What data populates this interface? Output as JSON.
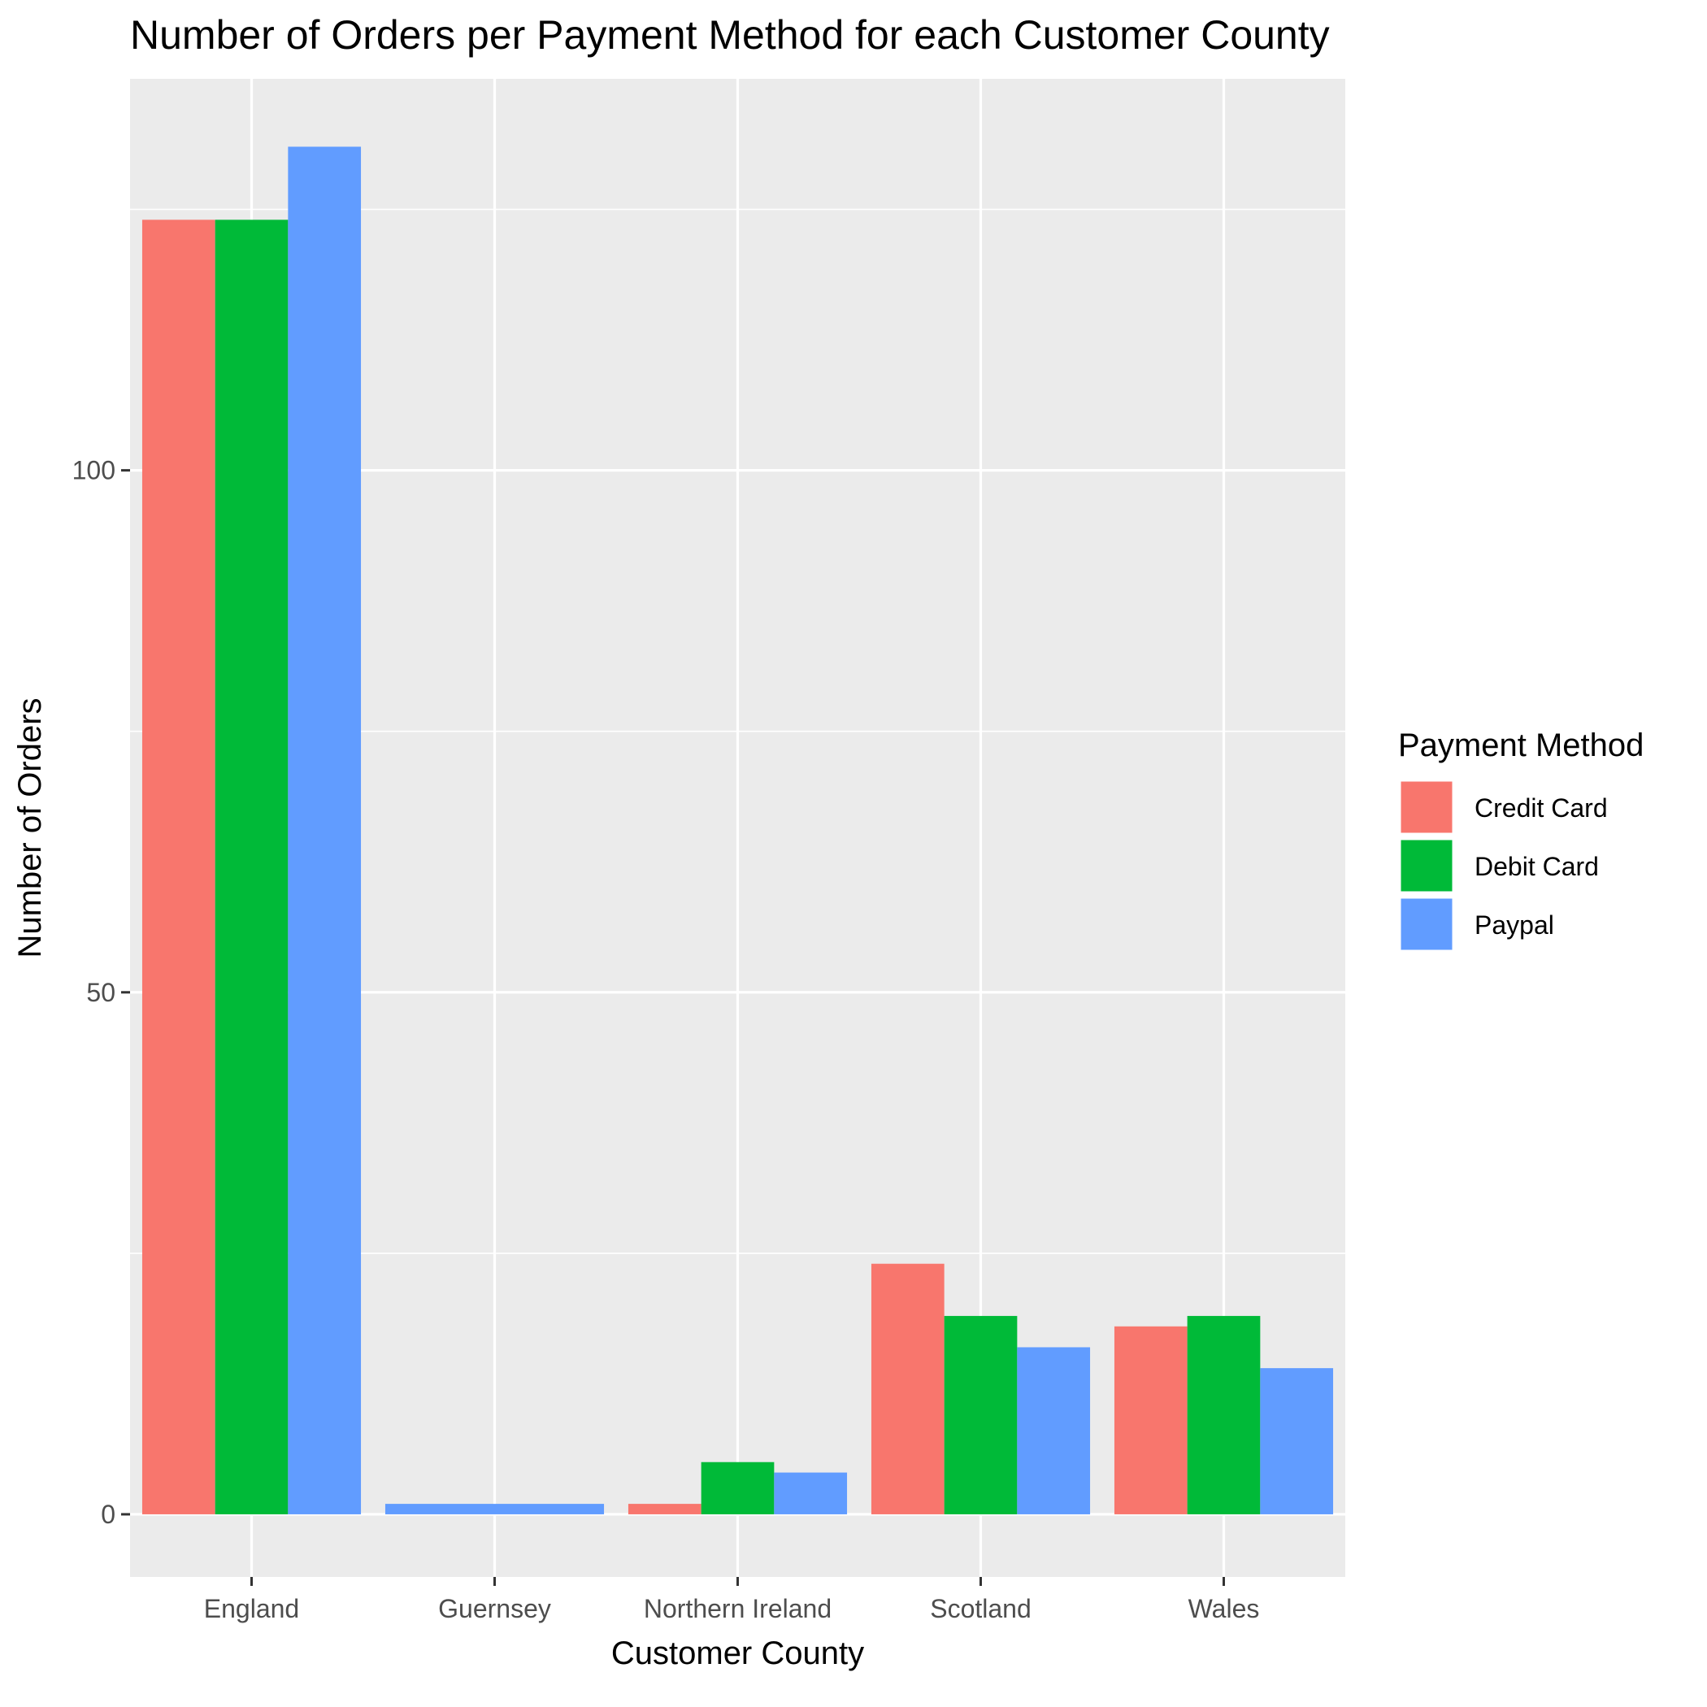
{
  "chart_data": {
    "type": "bar",
    "title": "Number of Orders per Payment Method for each Customer County",
    "xlabel": "Customer County",
    "ylabel": "Number of Orders",
    "categories": [
      "England",
      "Guernsey",
      "Northern Ireland",
      "Scotland",
      "Wales"
    ],
    "series": [
      {
        "name": "Credit Card",
        "color": "#F8766D",
        "values": [
          124,
          null,
          1,
          24,
          18
        ]
      },
      {
        "name": "Debit Card",
        "color": "#00BA38",
        "values": [
          124,
          null,
          5,
          19,
          19
        ]
      },
      {
        "name": "Paypal",
        "color": "#619CFF",
        "values": [
          131,
          1,
          4,
          16,
          14
        ]
      }
    ],
    "grouped_bar_dodge": "single bar spans full group width when only one series is present",
    "ylim": [
      -6,
      137.5
    ],
    "yticks": [
      0,
      50,
      100
    ],
    "grid": true,
    "panel_background": "#EBEBEB",
    "legend": {
      "title": "Payment Method",
      "position": "right"
    }
  }
}
